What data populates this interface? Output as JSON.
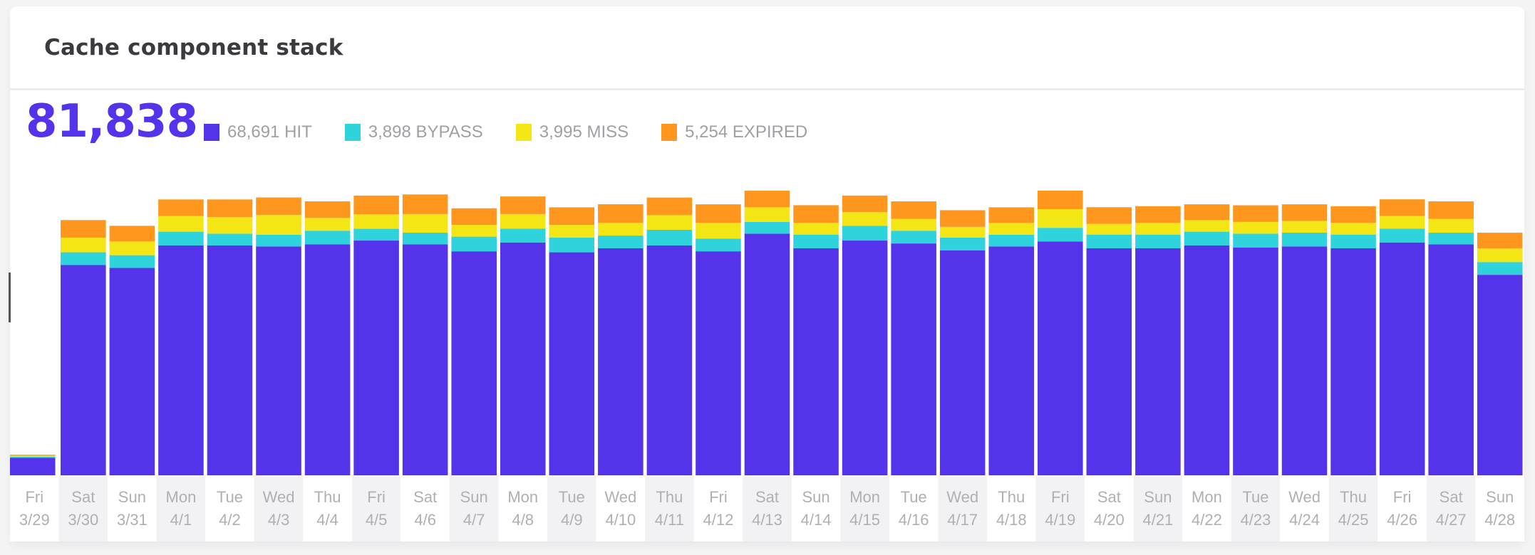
{
  "title": "Cache component stack",
  "total": "81,838",
  "legend": [
    {
      "value": "68,691",
      "label": "HIT",
      "text": "68,691 HIT",
      "color": "#5433eb"
    },
    {
      "value": "3,898",
      "label": "BYPASS",
      "text": "3,898 BYPASS",
      "color": "#2ed3db"
    },
    {
      "value": "3,995",
      "label": "MISS",
      "text": "3,995 MISS",
      "color": "#f3e614"
    },
    {
      "value": "5,254",
      "label": "EXPIRED",
      "text": "5,254 EXPIRED",
      "color": "#ff971f"
    }
  ],
  "chart_data": {
    "type": "bar",
    "stacked": true,
    "title": "Cache component stack",
    "grid": false,
    "legend_placement": "top-left",
    "categories": [
      [
        "Fri",
        "3/29"
      ],
      [
        "Sat",
        "3/30"
      ],
      [
        "Sun",
        "3/31"
      ],
      [
        "Mon",
        "4/1"
      ],
      [
        "Tue",
        "4/2"
      ],
      [
        "Wed",
        "4/3"
      ],
      [
        "Thu",
        "4/4"
      ],
      [
        "Fri",
        "4/5"
      ],
      [
        "Sat",
        "4/6"
      ],
      [
        "Sun",
        "4/7"
      ],
      [
        "Mon",
        "4/8"
      ],
      [
        "Tue",
        "4/9"
      ],
      [
        "Wed",
        "4/10"
      ],
      [
        "Thu",
        "4/11"
      ],
      [
        "Fri",
        "4/12"
      ],
      [
        "Sat",
        "4/13"
      ],
      [
        "Sun",
        "4/14"
      ],
      [
        "Mon",
        "4/15"
      ],
      [
        "Tue",
        "4/16"
      ],
      [
        "Wed",
        "4/17"
      ],
      [
        "Thu",
        "4/18"
      ],
      [
        "Fri",
        "4/19"
      ],
      [
        "Sat",
        "4/20"
      ],
      [
        "Sun",
        "4/21"
      ],
      [
        "Mon",
        "4/22"
      ],
      [
        "Tue",
        "4/23"
      ],
      [
        "Wed",
        "4/24"
      ],
      [
        "Thu",
        "4/25"
      ],
      [
        "Fri",
        "4/26"
      ],
      [
        "Sat",
        "4/27"
      ],
      [
        "Sun",
        "4/28"
      ]
    ],
    "series": [
      {
        "name": "HIT",
        "color": "#5433eb",
        "values": [
          177,
          2113,
          2084,
          2310,
          2310,
          2300,
          2320,
          2359,
          2320,
          2251,
          2340,
          2241,
          2281,
          2310,
          2251,
          2428,
          2281,
          2359,
          2330,
          2261,
          2300,
          2349,
          2281,
          2281,
          2310,
          2290,
          2300,
          2281,
          2340,
          2320,
          2015
        ]
      },
      {
        "name": "BYPASS",
        "color": "#2ed3db",
        "values": [
          10,
          128,
          128,
          138,
          118,
          118,
          138,
          118,
          118,
          147,
          138,
          147,
          128,
          157,
          128,
          118,
          138,
          147,
          128,
          128,
          118,
          138,
          138,
          138,
          138,
          138,
          138,
          138,
          138,
          118,
          128
        ]
      },
      {
        "name": "MISS",
        "color": "#f3e614",
        "values": [
          10,
          147,
          138,
          157,
          167,
          197,
          128,
          147,
          187,
          118,
          147,
          128,
          128,
          147,
          157,
          147,
          118,
          138,
          118,
          108,
          118,
          187,
          108,
          118,
          118,
          118,
          118,
          118,
          128,
          138,
          138
        ]
      },
      {
        "name": "EXPIRED",
        "color": "#ff971f",
        "values": [
          10,
          177,
          157,
          167,
          177,
          177,
          167,
          187,
          197,
          167,
          177,
          177,
          187,
          177,
          187,
          167,
          177,
          167,
          177,
          167,
          157,
          187,
          167,
          167,
          157,
          167,
          167,
          167,
          167,
          177,
          157
        ]
      }
    ]
  }
}
